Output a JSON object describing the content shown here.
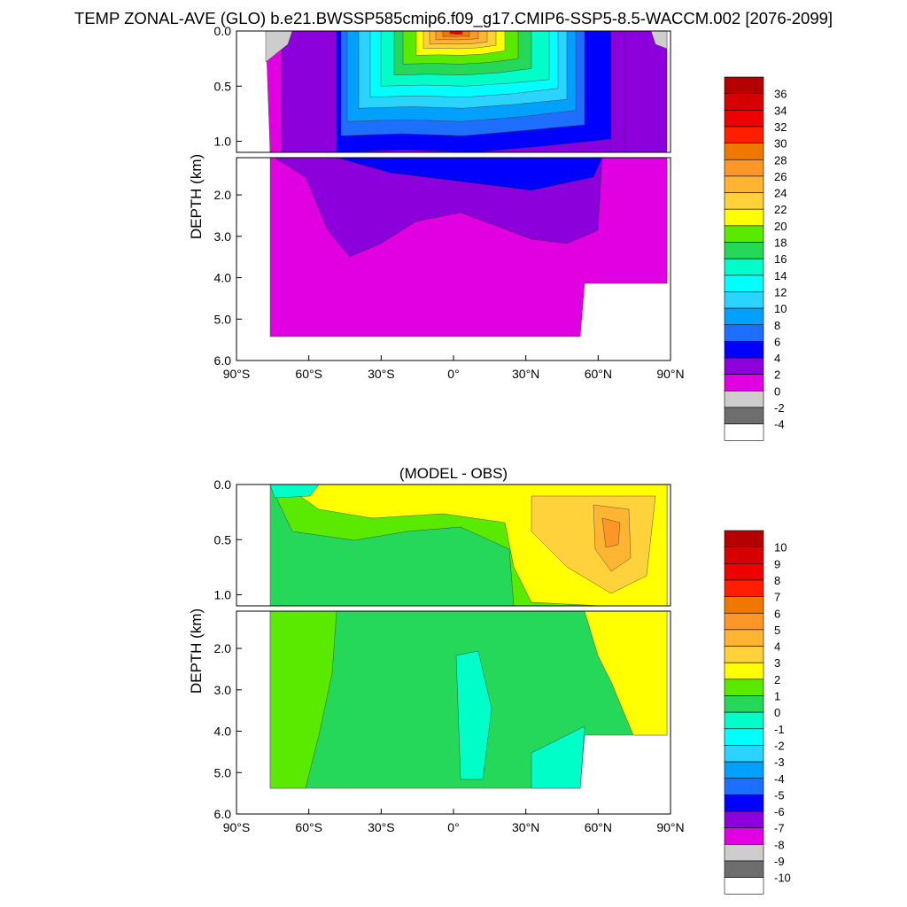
{
  "figure_title": "TEMP ZONAL-AVE (GLO) b.e21.BWSSP585cmip6.f09_g17.CMIP6-SSP5-8.5-WACCM.002 [2076-2099]",
  "chart_data": [
    {
      "type": "heatmap",
      "title": "",
      "ylabel": "DEPTH (km)",
      "x_ticks": [
        "90°S",
        "60°S",
        "30°S",
        "0°",
        "30°N",
        "60°N",
        "90°N"
      ],
      "x_values": [
        -90,
        -60,
        -30,
        0,
        30,
        60,
        90
      ],
      "xlim": [
        -90,
        90
      ],
      "y_ticks_upper": [
        "0.0",
        "0.5",
        "1.0"
      ],
      "y_ticks_lower": [
        "2.0",
        "3.0",
        "4.0",
        "5.0",
        "6.0"
      ],
      "ylim_upper": [
        0.0,
        1.1
      ],
      "ylim_lower": [
        1.1,
        6.0
      ],
      "colorbar": {
        "labels": [
          "36",
          "34",
          "32",
          "30",
          "28",
          "26",
          "24",
          "22",
          "20",
          "18",
          "16",
          "14",
          "12",
          "10",
          "8",
          "6",
          "4",
          "2",
          "0",
          "-2",
          "-4"
        ],
        "colors": [
          "#b40000",
          "#d70000",
          "#ee0000",
          "#ff1e00",
          "#ee7800",
          "#ff9628",
          "#ffb432",
          "#ffd23c",
          "#ffff00",
          "#5aea00",
          "#26d85a",
          "#00ffc8",
          "#00ffff",
          "#2ad4ff",
          "#00a0ff",
          "#1e6eff",
          "#0000ff",
          "#8c00dc",
          "#e100e1",
          "#cdcdcd",
          "#6e6e6e",
          "#ffffff"
        ]
      }
    },
    {
      "type": "heatmap",
      "title": "(MODEL - OBS)",
      "ylabel": "DEPTH (km)",
      "x_ticks": [
        "90°S",
        "60°S",
        "30°S",
        "0°",
        "30°N",
        "60°N",
        "90°N"
      ],
      "x_values": [
        -90,
        -60,
        -30,
        0,
        30,
        60,
        90
      ],
      "xlim": [
        -90,
        90
      ],
      "y_ticks_upper": [
        "0.0",
        "0.5",
        "1.0"
      ],
      "y_ticks_lower": [
        "2.0",
        "3.0",
        "4.0",
        "5.0",
        "6.0"
      ],
      "ylim_upper": [
        0.0,
        1.1
      ],
      "ylim_lower": [
        1.1,
        6.0
      ],
      "colorbar": {
        "labels": [
          "10",
          "9",
          "8",
          "7",
          "6",
          "5",
          "4",
          "3",
          "2",
          "1",
          "0",
          "-1",
          "-2",
          "-3",
          "-4",
          "-5",
          "-6",
          "-7",
          "-8",
          "-9",
          "-10"
        ],
        "colors": [
          "#b40000",
          "#d70000",
          "#ee0000",
          "#ff1e00",
          "#ee7800",
          "#ff9628",
          "#ffb432",
          "#ffd23c",
          "#ffff00",
          "#5aea00",
          "#26d85a",
          "#00ffc8",
          "#00ffff",
          "#2ad4ff",
          "#00a0ff",
          "#1e6eff",
          "#0000ff",
          "#8c00dc",
          "#e100e1",
          "#cdcdcd",
          "#6e6e6e",
          "#ffffff"
        ]
      }
    }
  ]
}
